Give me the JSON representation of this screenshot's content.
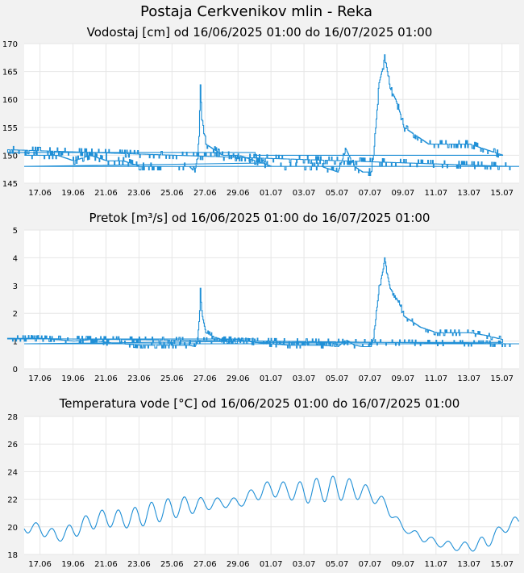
{
  "station_title": "Postaja Cerkvenikov mlin - Reka",
  "line_color": "#1f8fd6",
  "x_tick_labels": [
    "17.06",
    "19.06",
    "21.06",
    "23.06",
    "25.06",
    "27.06",
    "29.06",
    "01.07",
    "03.07",
    "05.07",
    "07.07",
    "09.07",
    "11.07",
    "13.07",
    "15.07"
  ],
  "chart_data": [
    {
      "type": "line",
      "title": "Vodostaj [cm] od 16/06/2025 01:00 do 16/07/2025 01:00",
      "xlabel": "",
      "ylabel": "",
      "x_start": "16.06 01:00",
      "x_end": "16.07 01:00",
      "ylim": [
        145,
        170
      ],
      "y_ticks": [
        145,
        150,
        155,
        160,
        165,
        170
      ],
      "grid": true,
      "series": [
        {
          "x": [
            "16.06",
            "17.06",
            "18.06",
            "19.06",
            "20.06",
            "21.06",
            "22.06",
            "23.06",
            "24.06",
            "25.06",
            "26.06",
            "26.08",
            "26.12",
            "26.14",
            "26.16",
            "26.18",
            "27.00",
            "27.12",
            "28.00",
            "29.00",
            "30.00",
            "01.07",
            "02.07",
            "03.07",
            "04.07",
            "05.07",
            "05.12",
            "06.00",
            "06.12",
            "06.14",
            "07.00",
            "07.04",
            "07.12",
            "07.18",
            "07.20",
            "08.00",
            "08.04",
            "08.12",
            "08.20",
            "09.00",
            "09.12",
            "10.00",
            "10.12",
            "11.00",
            "12.00",
            "13.00",
            "14.00",
            "15.00",
            "15.06",
            "15.12",
            "16.00"
          ],
          "y": [
            150,
            150,
            150,
            149,
            150,
            149,
            149,
            148,
            148,
            148,
            148,
            147,
            150,
            154,
            162,
            157,
            152,
            151,
            150,
            150,
            149,
            148,
            148,
            148,
            148,
            147,
            151,
            148,
            147,
            147,
            147,
            150,
            163,
            166,
            168,
            165,
            162,
            160,
            157,
            155,
            154,
            153,
            152,
            152,
            152,
            152,
            151,
            150,
            151,
            148,
            148
          ]
        }
      ]
    },
    {
      "type": "line",
      "title": "Pretok [m³/s] od 16/06/2025 01:00 do 16/07/2025 01:00",
      "xlabel": "",
      "ylabel": "",
      "x_start": "16.06 01:00",
      "x_end": "16.07 01:00",
      "ylim": [
        0,
        5
      ],
      "y_ticks": [
        0,
        1,
        2,
        3,
        4,
        5
      ],
      "grid": true,
      "series": [
        {
          "x": [
            "16.06",
            "17.06",
            "18.06",
            "19.06",
            "20.06",
            "21.06",
            "22.06",
            "23.06",
            "24.06",
            "25.06",
            "26.06",
            "26.08",
            "26.12",
            "26.14",
            "26.16",
            "26.18",
            "27.00",
            "27.12",
            "28.00",
            "29.00",
            "30.00",
            "01.07",
            "02.07",
            "03.07",
            "04.07",
            "05.07",
            "05.12",
            "06.00",
            "06.12",
            "06.14",
            "07.00",
            "07.04",
            "07.12",
            "07.18",
            "07.20",
            "08.00",
            "08.04",
            "08.12",
            "08.20",
            "09.00",
            "09.12",
            "10.00",
            "10.12",
            "11.00",
            "12.00",
            "13.00",
            "14.00",
            "15.00",
            "15.06",
            "15.12",
            "16.00"
          ],
          "y": [
            1.1,
            1.1,
            1.05,
            1.0,
            1.05,
            0.95,
            0.9,
            0.85,
            0.85,
            0.85,
            0.85,
            0.8,
            1.0,
            1.6,
            2.8,
            2.0,
            1.3,
            1.15,
            1.05,
            1.05,
            0.95,
            0.9,
            0.85,
            0.85,
            0.85,
            0.8,
            1.05,
            0.85,
            0.8,
            0.8,
            0.8,
            1.1,
            2.9,
            3.6,
            4.0,
            3.4,
            2.9,
            2.6,
            2.2,
            1.9,
            1.7,
            1.5,
            1.4,
            1.3,
            1.3,
            1.3,
            1.2,
            1.05,
            1.1,
            0.9,
            0.9
          ]
        }
      ]
    },
    {
      "type": "line",
      "title": "Temperatura vode [°C] od 16/06/2025 01:00 do 16/07/2025 01:00",
      "xlabel": "",
      "ylabel": "",
      "x_start": "16.06 01:00",
      "x_end": "16.07 01:00",
      "ylim": [
        18,
        28
      ],
      "y_ticks": [
        18,
        20,
        22,
        24,
        26,
        28
      ],
      "grid": true,
      "series": [
        {
          "x": [
            "16.06",
            "17.06",
            "18.06",
            "19.06",
            "20.06",
            "21.06",
            "22.06",
            "23.06",
            "24.06",
            "25.06",
            "26.06",
            "27.06",
            "28.06",
            "29.06",
            "30.06",
            "01.07",
            "02.07",
            "03.07",
            "04.07",
            "05.07",
            "06.07",
            "07.07",
            "08.07",
            "09.07",
            "10.07",
            "11.07",
            "12.07",
            "13.07",
            "14.07",
            "15.07",
            "16.07"
          ],
          "daily_min": [
            19.6,
            19.4,
            18.9,
            19.2,
            19.8,
            20.0,
            19.9,
            20.0,
            20.3,
            20.6,
            20.9,
            21.2,
            21.4,
            21.4,
            21.9,
            22.2,
            22.0,
            21.7,
            21.8,
            21.9,
            22.0,
            21.9,
            21.0,
            19.7,
            19.0,
            18.6,
            18.3,
            18.2,
            18.4,
            19.5,
            20.0
          ],
          "daily_max": [
            20.3,
            20.3,
            19.7,
            20.3,
            21.0,
            21.3,
            21.2,
            21.5,
            21.9,
            22.1,
            22.2,
            22.1,
            22.1,
            22.1,
            22.9,
            23.4,
            23.2,
            23.3,
            23.6,
            23.7,
            23.4,
            22.9,
            21.9,
            20.0,
            19.6,
            19.1,
            18.9,
            18.9,
            19.4,
            20.2,
            20.9
          ]
        }
      ]
    }
  ]
}
